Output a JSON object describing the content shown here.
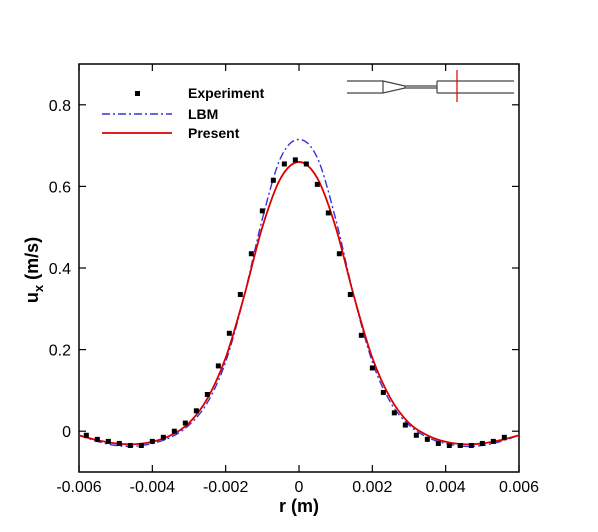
{
  "chart_data": {
    "type": "line",
    "title": "",
    "xlabel": "r (m)",
    "ylabel": {
      "main": "u",
      "sub": "x",
      "unit": " (m/s)"
    },
    "xlim": [
      -0.006,
      0.006
    ],
    "ylim": [
      -0.1,
      0.9
    ],
    "xticks": [
      -0.006,
      -0.004,
      -0.002,
      0,
      0.002,
      0.004,
      0.006
    ],
    "xtick_labels": [
      "-0.006",
      "-0.004",
      "-0.002",
      "0",
      "0.002",
      "0.004",
      "0.006"
    ],
    "yticks": [
      0,
      0.2,
      0.4,
      0.6,
      0.8
    ],
    "ytick_labels": [
      "0",
      "0.2",
      "0.4",
      "0.6",
      "0.8"
    ],
    "grid": false,
    "legend_position": "top-left",
    "inset": "geometry-sketch-top-right",
    "colors": {
      "experiment": "#000000",
      "lbm": "#3333dd",
      "present": "#dd0000",
      "inset_marker": "#dd0000"
    },
    "series": [
      {
        "name": "Experiment",
        "style": "square-markers",
        "x": [
          -0.0058,
          -0.0055,
          -0.0052,
          -0.0049,
          -0.0046,
          -0.0043,
          -0.004,
          -0.0037,
          -0.0034,
          -0.0031,
          -0.0028,
          -0.0025,
          -0.0022,
          -0.0019,
          -0.0016,
          -0.0013,
          -0.001,
          -0.0007,
          -0.0004,
          -0.0001,
          0.0002,
          0.0005,
          0.0008,
          0.0011,
          0.0014,
          0.0017,
          0.002,
          0.0023,
          0.0026,
          0.0029,
          0.0032,
          0.0035,
          0.0038,
          0.0041,
          0.0044,
          0.0047,
          0.005,
          0.0053,
          0.0056
        ],
        "y": [
          -0.01,
          -0.02,
          -0.025,
          -0.03,
          -0.035,
          -0.035,
          -0.025,
          -0.015,
          0.0,
          0.02,
          0.05,
          0.09,
          0.16,
          0.24,
          0.335,
          0.435,
          0.54,
          0.615,
          0.655,
          0.665,
          0.655,
          0.605,
          0.535,
          0.435,
          0.335,
          0.235,
          0.155,
          0.095,
          0.045,
          0.015,
          -0.01,
          -0.02,
          -0.03,
          -0.035,
          -0.035,
          -0.035,
          -0.03,
          -0.025,
          -0.015
        ]
      },
      {
        "name": "LBM",
        "style": "dash-dot",
        "x": [
          -0.006,
          -0.0055,
          -0.005,
          -0.0045,
          -0.004,
          -0.0035,
          -0.003,
          -0.0025,
          -0.002,
          -0.0015,
          -0.001,
          -0.0005,
          0,
          0.0005,
          0.001,
          0.0015,
          0.002,
          0.0025,
          0.003,
          0.0035,
          0.004,
          0.0045,
          0.005,
          0.0055,
          0.006
        ],
        "y": [
          -0.01,
          -0.025,
          -0.035,
          -0.037,
          -0.03,
          -0.015,
          0.015,
          0.07,
          0.17,
          0.33,
          0.52,
          0.67,
          0.715,
          0.67,
          0.52,
          0.33,
          0.17,
          0.07,
          0.015,
          -0.015,
          -0.03,
          -0.037,
          -0.035,
          -0.025,
          -0.01
        ]
      },
      {
        "name": "Present",
        "style": "solid",
        "x": [
          -0.006,
          -0.0055,
          -0.005,
          -0.0045,
          -0.004,
          -0.0035,
          -0.003,
          -0.0025,
          -0.002,
          -0.0015,
          -0.001,
          -0.0005,
          0,
          0.0005,
          0.001,
          0.0015,
          0.002,
          0.0025,
          0.003,
          0.0035,
          0.004,
          0.0045,
          0.005,
          0.0055,
          0.006
        ],
        "y": [
          -0.01,
          -0.022,
          -0.03,
          -0.032,
          -0.026,
          -0.01,
          0.02,
          0.08,
          0.18,
          0.33,
          0.5,
          0.62,
          0.66,
          0.62,
          0.5,
          0.33,
          0.18,
          0.08,
          0.02,
          -0.01,
          -0.026,
          -0.032,
          -0.03,
          -0.022,
          -0.01
        ]
      }
    ]
  }
}
